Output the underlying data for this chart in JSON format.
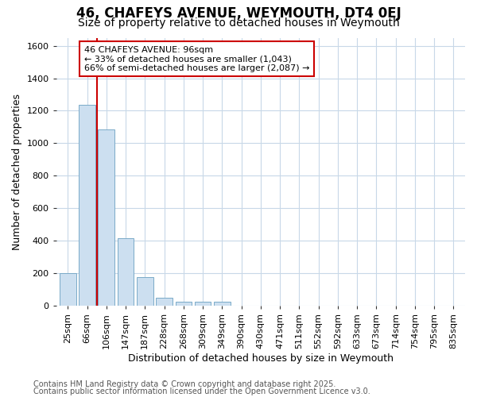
{
  "title": "46, CHAFEYS AVENUE, WEYMOUTH, DT4 0EJ",
  "subtitle": "Size of property relative to detached houses in Weymouth",
  "xlabel": "Distribution of detached houses by size in Weymouth",
  "ylabel": "Number of detached properties",
  "bar_color": "#ccdff0",
  "bar_edge_color": "#7aaac8",
  "background_color": "#ffffff",
  "grid_color": "#c8d8e8",
  "categories": [
    "25sqm",
    "66sqm",
    "106sqm",
    "147sqm",
    "187sqm",
    "228sqm",
    "268sqm",
    "309sqm",
    "349sqm",
    "390sqm",
    "430sqm",
    "471sqm",
    "511sqm",
    "552sqm",
    "592sqm",
    "633sqm",
    "673sqm",
    "714sqm",
    "754sqm",
    "795sqm",
    "835sqm"
  ],
  "values": [
    200,
    1235,
    1085,
    415,
    175,
    50,
    25,
    25,
    25,
    0,
    0,
    0,
    0,
    0,
    0,
    0,
    0,
    0,
    0,
    0,
    0
  ],
  "ylim": [
    0,
    1650
  ],
  "yticks": [
    0,
    200,
    400,
    600,
    800,
    1000,
    1200,
    1400,
    1600
  ],
  "annotation_text": "46 CHAFEYS AVENUE: 96sqm\n← 33% of detached houses are smaller (1,043)\n66% of semi-detached houses are larger (2,087) →",
  "annotation_box_color": "#ffffff",
  "annotation_border_color": "#cc0000",
  "vline_color": "#cc0000",
  "footer1": "Contains HM Land Registry data © Crown copyright and database right 2025.",
  "footer2": "Contains public sector information licensed under the Open Government Licence v3.0.",
  "title_fontsize": 12,
  "subtitle_fontsize": 10,
  "tick_fontsize": 8,
  "label_fontsize": 9,
  "annotation_fontsize": 8,
  "footer_fontsize": 7
}
